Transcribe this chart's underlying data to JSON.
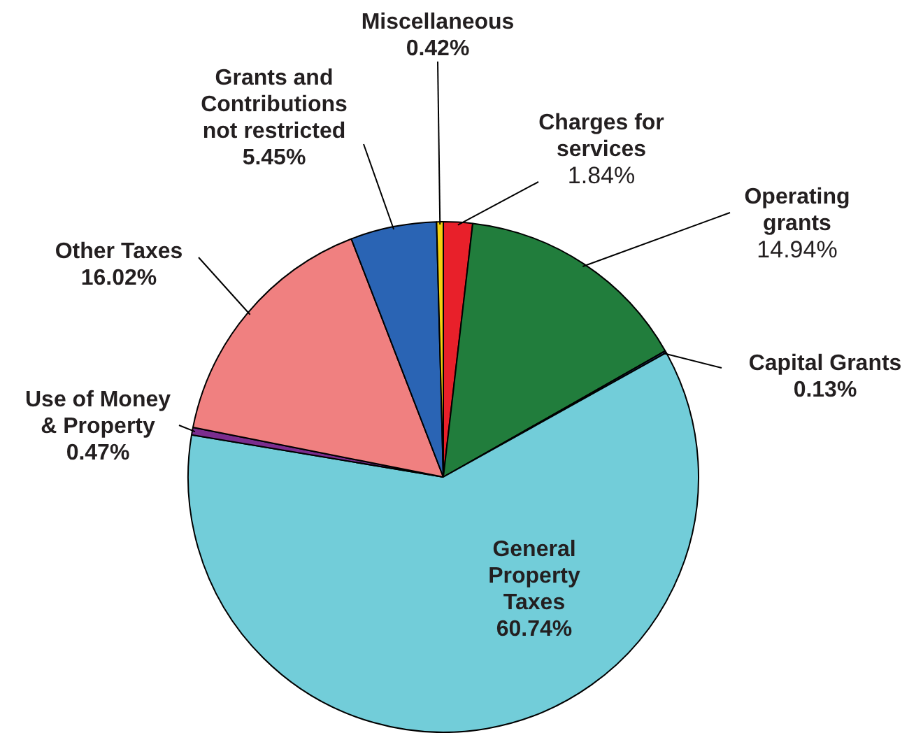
{
  "chart_data": {
    "type": "pie",
    "categories": [
      "Charges for services",
      "Operating grants",
      "Capital Grants",
      "General Property Taxes",
      "Use of Money & Property",
      "Other Taxes",
      "Grants and Contributions not restricted",
      "Miscellaneous"
    ],
    "values": [
      1.84,
      14.94,
      0.13,
      60.74,
      0.47,
      16.02,
      5.45,
      0.42
    ],
    "colors": [
      "#e8202a",
      "#217d3c",
      "#1f3a6e",
      "#72cdd9",
      "#7b2d8e",
      "#f08080",
      "#2a64b4",
      "#f5d20f"
    ],
    "value_labels": [
      "1.84%",
      "14.94%",
      "0.13%",
      "60.74%",
      "0.47%",
      "16.02%",
      "5.45%",
      "0.42%"
    ]
  }
}
